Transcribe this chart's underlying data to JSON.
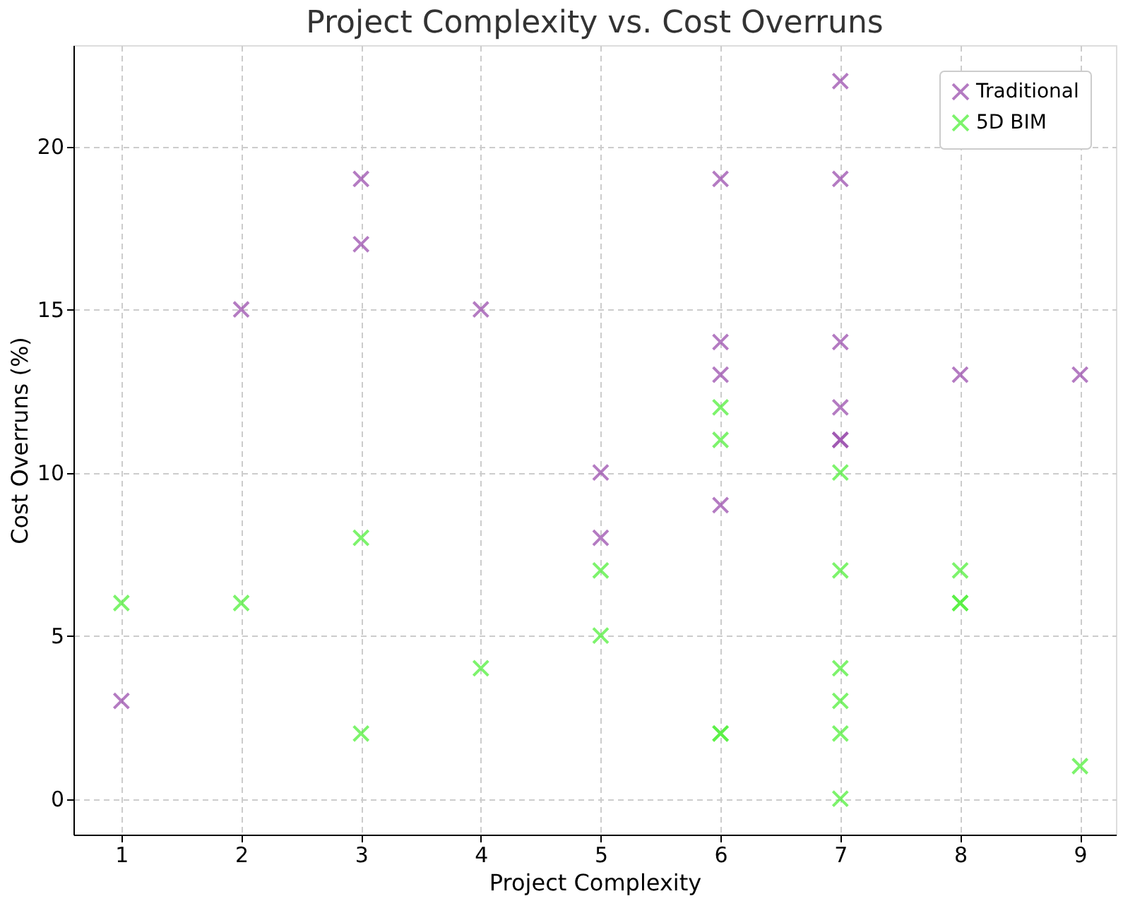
{
  "chart_data": {
    "type": "scatter",
    "title": "Project Complexity vs. Cost Overruns",
    "xlabel": "Project Complexity",
    "ylabel": "Cost Overruns (%)",
    "xlim": [
      0.6,
      9.3
    ],
    "xticks": [
      1,
      2,
      3,
      4,
      5,
      6,
      7,
      8,
      9
    ],
    "ylim": [
      -1.1,
      23.1
    ],
    "yticks": [
      0,
      5,
      10,
      15,
      20
    ],
    "grid": true,
    "legend": "top right",
    "marker": "cross",
    "series": [
      {
        "name": "Traditional",
        "color": "#9b4fae",
        "x": [
          1,
          2,
          3,
          3,
          4,
          5,
          5,
          6,
          6,
          6,
          6,
          7,
          7,
          7,
          7,
          7,
          7,
          8,
          9
        ],
        "values": [
          3,
          15,
          19,
          17,
          15,
          10,
          8,
          19,
          14,
          13,
          9,
          22,
          19,
          14,
          12,
          11,
          11,
          13,
          13
        ]
      },
      {
        "name": "5D BIM",
        "color": "#52f03c",
        "x": [
          1,
          2,
          3,
          3,
          4,
          5,
          5,
          6,
          6,
          6,
          6,
          7,
          7,
          7,
          7,
          7,
          7,
          8,
          8,
          8,
          9
        ],
        "values": [
          6,
          6,
          8,
          2,
          4,
          7,
          5,
          12,
          11,
          2,
          2,
          10,
          7,
          4,
          3,
          2,
          0,
          7,
          6,
          6,
          1
        ]
      }
    ]
  }
}
